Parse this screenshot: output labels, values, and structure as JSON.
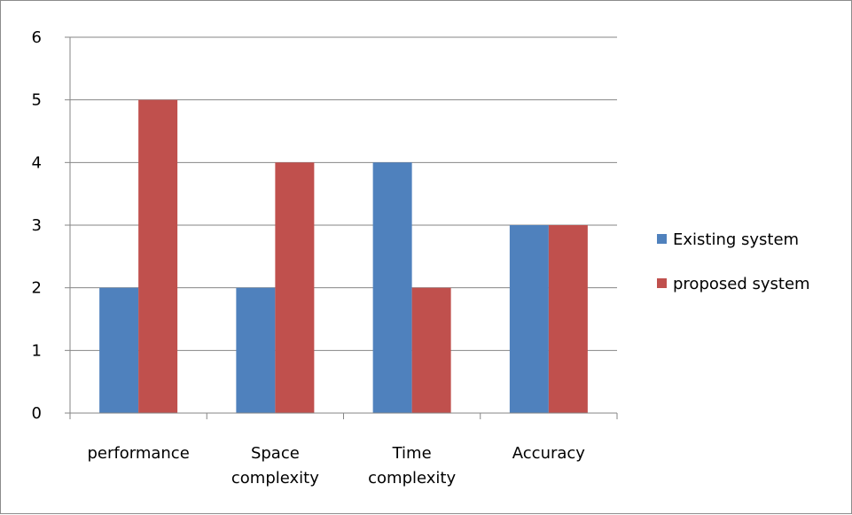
{
  "chart_data": {
    "type": "bar",
    "categories": [
      [
        "performance"
      ],
      [
        "Space",
        "complexity"
      ],
      [
        "Time",
        "complexity"
      ],
      [
        "Accuracy"
      ]
    ],
    "series": [
      {
        "name": "Existing system",
        "values": [
          2,
          2,
          4,
          3
        ],
        "color": "#4f81bd"
      },
      {
        "name": "proposed system",
        "values": [
          5,
          4,
          2,
          3
        ],
        "color": "#c0504d"
      }
    ],
    "ylim": [
      0,
      6
    ],
    "yticks": [
      "0",
      "1",
      "2",
      "3",
      "4",
      "5",
      "6"
    ],
    "grid": true,
    "legend": "right"
  }
}
